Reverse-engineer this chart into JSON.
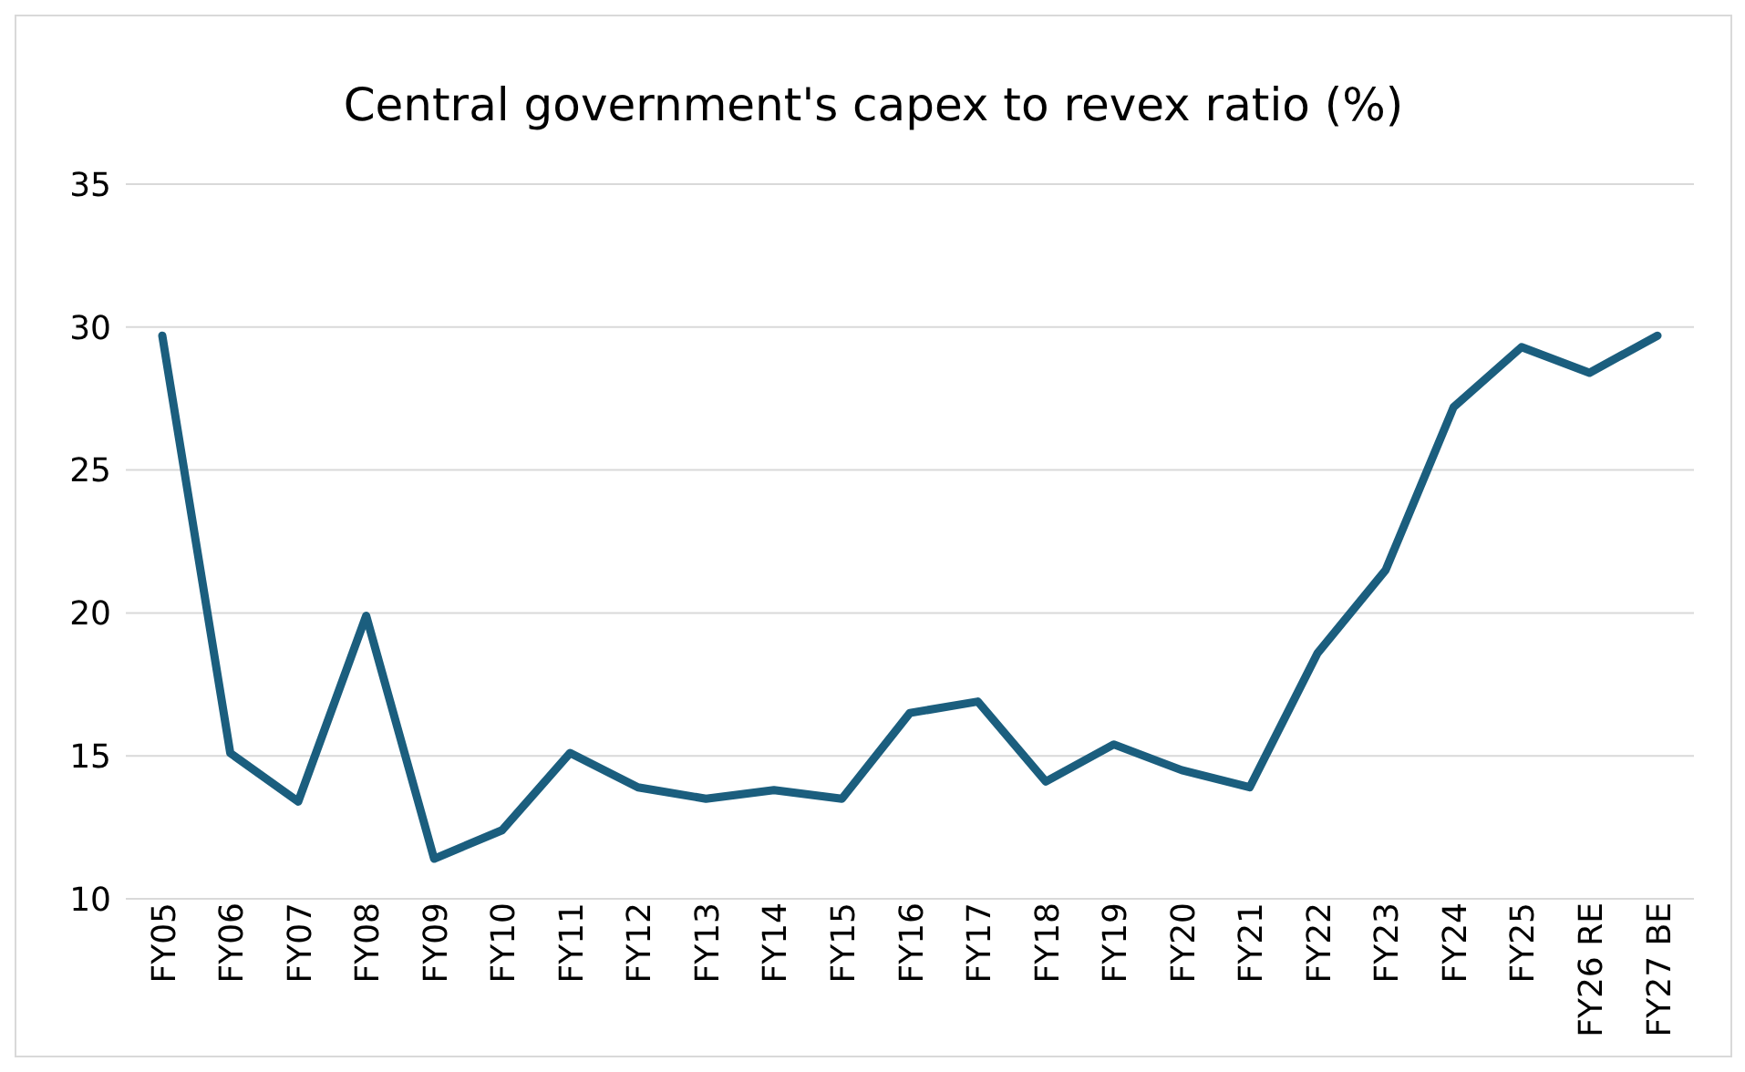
{
  "chart_data": {
    "type": "line",
    "title": "Central government's capex to revex ratio (%)",
    "categories": [
      "FY05",
      "FY06",
      "FY07",
      "FY08",
      "FY09",
      "FY10",
      "FY11",
      "FY12",
      "FY13",
      "FY14",
      "FY15",
      "FY16",
      "FY17",
      "FY18",
      "FY19",
      "FY20",
      "FY21",
      "FY22",
      "FY23",
      "FY24",
      "FY25",
      "FY26 RE",
      "FY27 BE"
    ],
    "series": [
      {
        "color": "#1b5e7e",
        "values": [
          29.7,
          15.1,
          13.4,
          19.9,
          11.4,
          12.4,
          15.1,
          13.9,
          13.5,
          13.8,
          13.5,
          16.5,
          16.9,
          14.1,
          15.4,
          14.5,
          13.9,
          18.6,
          21.5,
          27.2,
          29.3,
          28.4,
          29.7
        ]
      }
    ],
    "ylim": [
      10,
      35
    ],
    "yticks": [
      10,
      15,
      20,
      25,
      30,
      35
    ],
    "grid": "y",
    "legend": false,
    "marker": "none",
    "line_style": "solid"
  }
}
